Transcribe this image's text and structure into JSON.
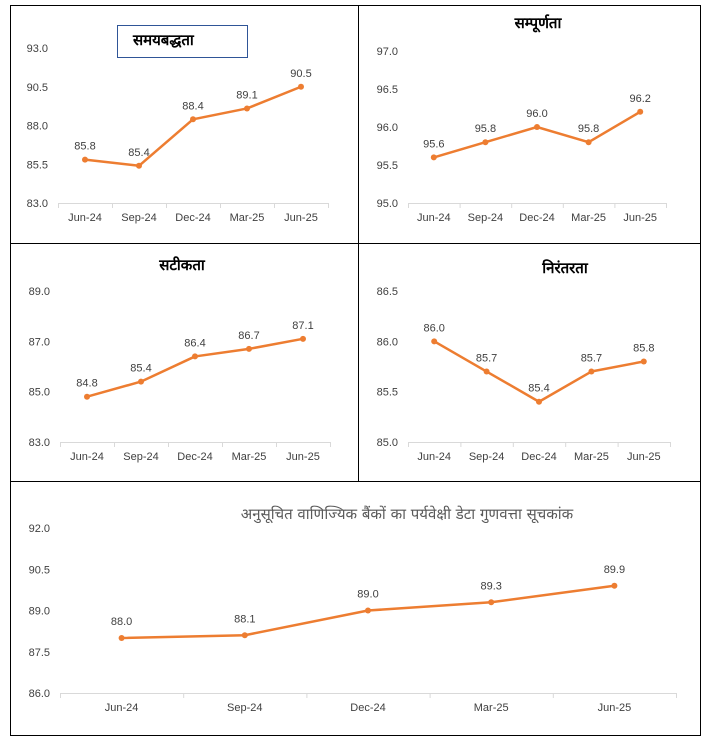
{
  "colors": {
    "line": "#ED7D31",
    "axis": "#D9D9D9",
    "text": "#404040",
    "border": "#000000",
    "title_box": "#2F5597"
  },
  "chart_data": [
    {
      "type": "line",
      "title": "समयबद्धता",
      "categories": [
        "Jun-24",
        "Sep-24",
        "Dec-24",
        "Mar-25",
        "Jun-25"
      ],
      "values": [
        85.8,
        85.4,
        88.4,
        89.1,
        90.5
      ],
      "ylim": [
        83.0,
        93.0
      ],
      "yticks": [
        "83.0",
        "85.5",
        "88.0",
        "90.5",
        "93.0"
      ],
      "grid": false,
      "data_labels": [
        "85.8",
        "85.4",
        "88.4",
        "89.1",
        "90.5"
      ]
    },
    {
      "type": "line",
      "title": "सम्पूर्णता",
      "categories": [
        "Jun-24",
        "Sep-24",
        "Dec-24",
        "Mar-25",
        "Jun-25"
      ],
      "values": [
        95.6,
        95.8,
        96.0,
        95.8,
        96.2
      ],
      "ylim": [
        95.0,
        97.0
      ],
      "yticks": [
        "95.0",
        "95.5",
        "96.0",
        "96.5",
        "97.0"
      ],
      "grid": false,
      "data_labels": [
        "95.6",
        "95.8",
        "96.0",
        "95.8",
        "96.2"
      ]
    },
    {
      "type": "line",
      "title": "सटीकता",
      "categories": [
        "Jun-24",
        "Sep-24",
        "Dec-24",
        "Mar-25",
        "Jun-25"
      ],
      "values": [
        84.8,
        85.4,
        86.4,
        86.7,
        87.1
      ],
      "ylim": [
        83.0,
        89.0
      ],
      "yticks": [
        "83.0",
        "85.0",
        "87.0",
        "89.0"
      ],
      "grid": false,
      "data_labels": [
        "84.8",
        "85.4",
        "86.4",
        "86.7",
        "87.1"
      ]
    },
    {
      "type": "line",
      "title": "निरंतरता",
      "categories": [
        "Jun-24",
        "Sep-24",
        "Dec-24",
        "Mar-25",
        "Jun-25"
      ],
      "values": [
        86.0,
        85.7,
        85.4,
        85.7,
        85.8
      ],
      "ylim": [
        85.0,
        86.5
      ],
      "yticks": [
        "85.0",
        "85.5",
        "86.0",
        "86.5"
      ],
      "grid": false,
      "data_labels": [
        "86.0",
        "85.7",
        "85.4",
        "85.7",
        "85.8"
      ]
    },
    {
      "type": "line",
      "title": "अनुसूचित वाणिज्यिक बैंकों का पर्यवेक्षी डेटा गुणवत्ता सूचकांक",
      "categories": [
        "Jun-24",
        "Sep-24",
        "Dec-24",
        "Mar-25",
        "Jun-25"
      ],
      "values": [
        88.0,
        88.1,
        89.0,
        89.3,
        89.9
      ],
      "ylim": [
        86.0,
        92.0
      ],
      "yticks": [
        "86.0",
        "87.5",
        "89.0",
        "90.5",
        "92.0"
      ],
      "grid": false,
      "data_labels": [
        "88.0",
        "88.1",
        "89.0",
        "89.3",
        "89.9"
      ]
    }
  ]
}
